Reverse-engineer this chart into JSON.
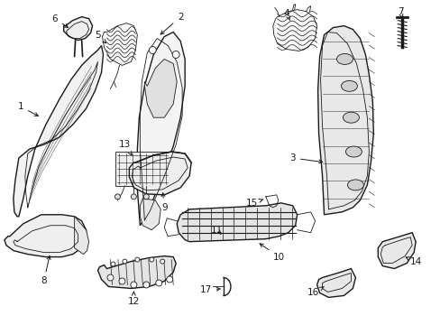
{
  "bg_color": "#ffffff",
  "line_color": "#1a1a1a",
  "label_color": "#1a1a1a",
  "figsize": [
    4.89,
    3.6
  ],
  "dpi": 100,
  "lw_main": 1.0,
  "lw_thin": 0.6,
  "label_fs": 7.5
}
